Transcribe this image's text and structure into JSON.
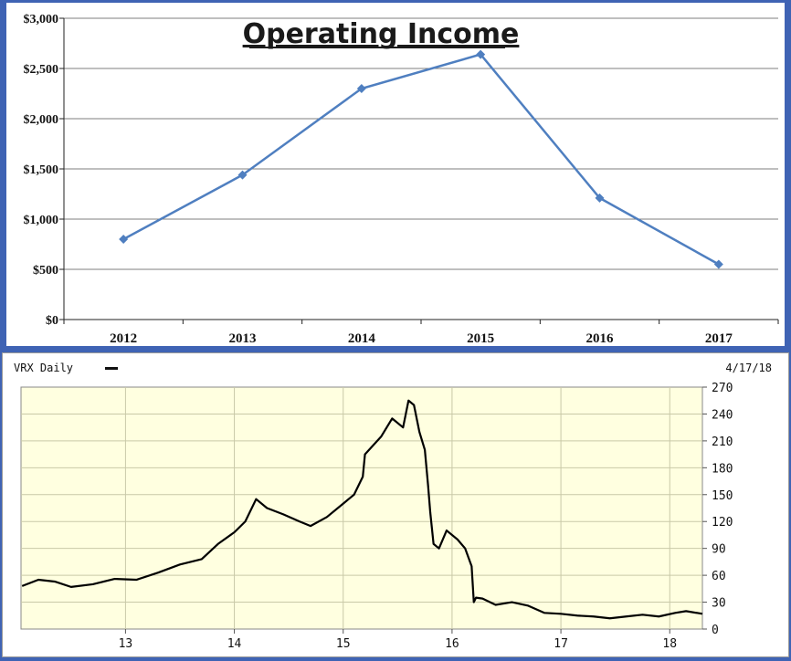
{
  "chart_data": [
    {
      "type": "line",
      "title": "Operating Income",
      "categories": [
        "2012",
        "2013",
        "2014",
        "2015",
        "2016",
        "2017"
      ],
      "values": [
        800,
        1440,
        2300,
        2640,
        1210,
        550
      ],
      "ylim": [
        0,
        3000
      ],
      "yticks": [
        0,
        500,
        1000,
        1500,
        2000,
        2500,
        3000
      ],
      "ytick_labels": [
        "$0",
        "$500",
        "$1,000",
        "$1,500",
        "$2,000",
        "$2,500",
        "$3,000"
      ],
      "grid": true,
      "color": "#4f7fc0"
    },
    {
      "type": "line",
      "legend": "VRX Daily",
      "date_label": "4/17/18",
      "x_tick_labels": [
        "13",
        "14",
        "15",
        "16",
        "17",
        "18"
      ],
      "x_ticks": [
        2013,
        2014,
        2015,
        2016,
        2017,
        2018
      ],
      "xlim": [
        2012.04,
        2018.3
      ],
      "ylim": [
        0,
        270
      ],
      "yticks": [
        0,
        30,
        60,
        90,
        120,
        150,
        180,
        210,
        240,
        270
      ],
      "ytick_labels": [
        "0",
        "30",
        "60",
        "90",
        "120",
        "150",
        "180",
        "210",
        "240",
        "270"
      ],
      "x": [
        2012.05,
        2012.2,
        2012.35,
        2012.5,
        2012.7,
        2012.9,
        2013.1,
        2013.3,
        2013.5,
        2013.7,
        2013.85,
        2014.0,
        2014.1,
        2014.2,
        2014.3,
        2014.45,
        2014.6,
        2014.7,
        2014.85,
        2015.0,
        2015.1,
        2015.18,
        2015.2,
        2015.35,
        2015.45,
        2015.55,
        2015.6,
        2015.65,
        2015.7,
        2015.75,
        2015.78,
        2015.8,
        2015.83,
        2015.88,
        2015.95,
        2016.05,
        2016.12,
        2016.18,
        2016.2,
        2016.22,
        2016.28,
        2016.4,
        2016.55,
        2016.7,
        2016.85,
        2017.0,
        2017.15,
        2017.3,
        2017.45,
        2017.6,
        2017.75,
        2017.9,
        2018.05,
        2018.15,
        2018.3
      ],
      "y": [
        48,
        55,
        53,
        47,
        50,
        56,
        55,
        63,
        72,
        78,
        95,
        108,
        120,
        145,
        135,
        128,
        120,
        115,
        125,
        140,
        150,
        170,
        195,
        215,
        235,
        225,
        255,
        250,
        220,
        200,
        160,
        130,
        95,
        90,
        110,
        100,
        90,
        70,
        30,
        35,
        34,
        27,
        30,
        26,
        18,
        17,
        15,
        14,
        12,
        14,
        16,
        14,
        18,
        20,
        17
      ],
      "color": "#000000",
      "plot_background": "#ffffe0"
    }
  ]
}
